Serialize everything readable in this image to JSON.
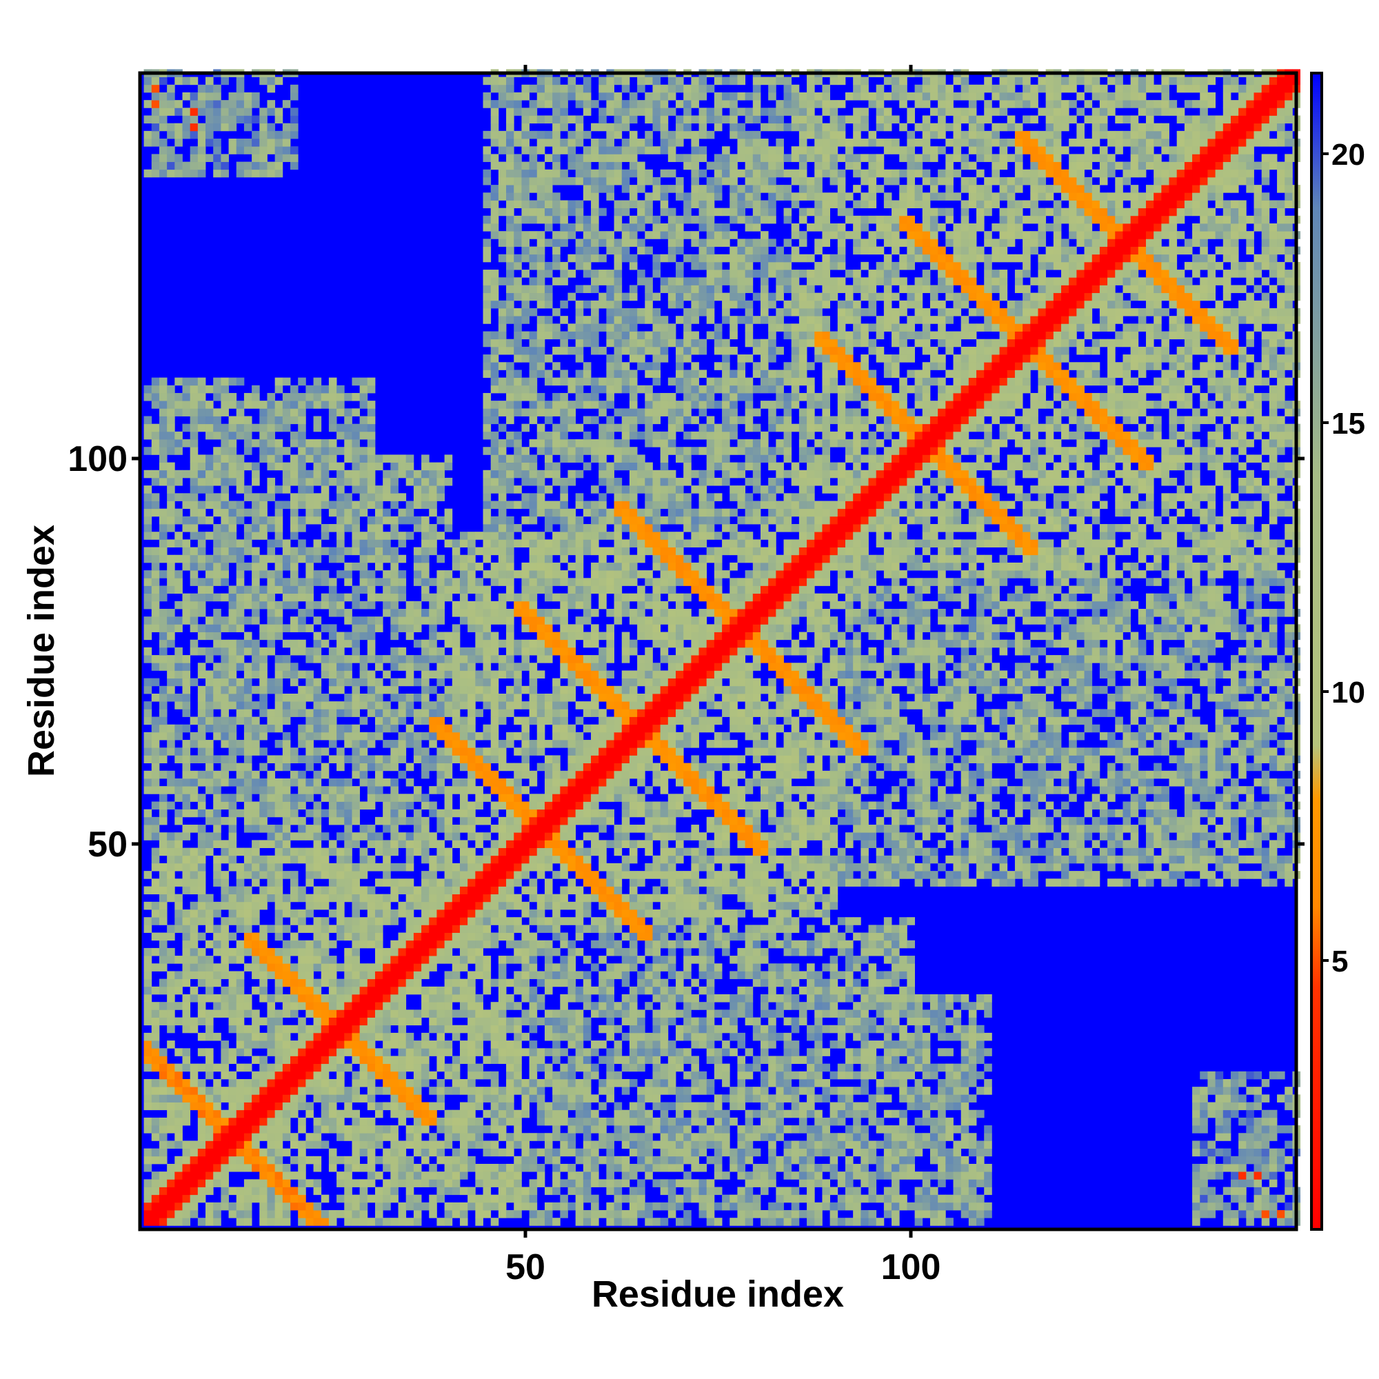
{
  "chart_data": {
    "type": "heatmap",
    "title": "",
    "xlabel": "Residue index",
    "ylabel": "Residue index",
    "n_residues": 150,
    "x_range": [
      1,
      150
    ],
    "y_range": [
      1,
      150
    ],
    "x_ticks": [
      50,
      100
    ],
    "y_ticks": [
      50,
      100
    ],
    "x_tick_labels": [
      "50",
      "100"
    ],
    "y_tick_labels": [
      "50",
      "100"
    ],
    "colorbar": {
      "range": [
        0,
        21.5
      ],
      "ticks": [
        5,
        10,
        15,
        20
      ],
      "tick_labels": [
        "5",
        "10",
        "15",
        "20"
      ],
      "placement": "right",
      "stops": [
        {
          "value": 0,
          "color": "#ff0000"
        },
        {
          "value": 4.5,
          "color": "#ff3300"
        },
        {
          "value": 6,
          "color": "#ff8800"
        },
        {
          "value": 8,
          "color": "#ff9900"
        },
        {
          "value": 9,
          "color": "#b6c47c"
        },
        {
          "value": 14,
          "color": "#a6bc86"
        },
        {
          "value": 19,
          "color": "#5f86b8"
        },
        {
          "value": 21.5,
          "color": "#0000ff"
        }
      ]
    },
    "max_value_color": "#0000ff",
    "value_meaning": "inter-residue distance (symmetric matrix, diagonal = 0)",
    "features": {
      "diagonal": {
        "value": 0
      },
      "helix_bundle_nodes": [
        {
          "x": 12,
          "y": 12
        },
        {
          "x": 26,
          "y": 26
        },
        {
          "x": 52,
          "y": 52
        },
        {
          "x": 65,
          "y": 65
        },
        {
          "x": 78,
          "y": 78
        },
        {
          "x": 102,
          "y": 102
        },
        {
          "x": 115,
          "y": 115
        },
        {
          "x": 128,
          "y": 128
        }
      ],
      "antidiagonal_contacts": [
        {
          "center": [
            12,
            12
          ],
          "span": 18,
          "value": 5.5
        },
        {
          "center": [
            26,
            26
          ],
          "span": 12,
          "value": 6
        },
        {
          "center": [
            52,
            52
          ],
          "span": 14,
          "value": 6
        },
        {
          "center": [
            65,
            65
          ],
          "span": 16,
          "value": 6
        },
        {
          "center": [
            78,
            78
          ],
          "span": 16,
          "value": 6
        },
        {
          "center": [
            102,
            102
          ],
          "span": 14,
          "value": 6
        },
        {
          "center": [
            115,
            115
          ],
          "span": 16,
          "value": 6
        },
        {
          "center": [
            128,
            128
          ],
          "span": 14,
          "value": 6
        }
      ],
      "contact_regions": [
        {
          "x": [
            1,
            50
          ],
          "y": [
            1,
            50
          ],
          "level": 12
        },
        {
          "x": [
            40,
            90
          ],
          "y": [
            40,
            90
          ],
          "level": 12
        },
        {
          "x": [
            85,
            150
          ],
          "y": [
            85,
            150
          ],
          "level": 12
        },
        {
          "x": [
            40,
            110
          ],
          "y": [
            1,
            30
          ],
          "level": 14
        },
        {
          "x": [
            1,
            40
          ],
          "y": [
            40,
            100
          ],
          "level": 14
        },
        {
          "x": [
            90,
            150
          ],
          "y": [
            45,
            80
          ],
          "level": 14
        },
        {
          "x": [
            45,
            90
          ],
          "y": [
            90,
            150
          ],
          "level": 14
        },
        {
          "x": [
            5,
            20
          ],
          "y": [
            138,
            150
          ],
          "level": 15
        },
        {
          "x": [
            137,
            150
          ],
          "y": [
            1,
            18
          ],
          "level": 15
        }
      ],
      "isolated_contacts": [
        {
          "x": 2,
          "y": 148,
          "value": 5
        },
        {
          "x": 7,
          "y": 145,
          "value": 4
        },
        {
          "x": 146,
          "y": 2,
          "value": 5
        },
        {
          "x": 143,
          "y": 7,
          "value": 4
        }
      ]
    }
  }
}
